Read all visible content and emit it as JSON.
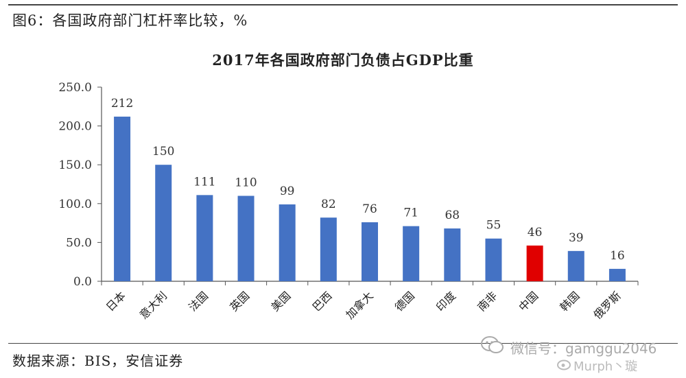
{
  "figure_caption": "图6：各国政府部门杠杆率比较，%",
  "source_note": "数据来源：BIS，安信证券",
  "watermark": {
    "wechat_text": "微信号：gamggu2046",
    "weibo_text": "Murph丶璇"
  },
  "colors": {
    "bar": "#4472c4",
    "highlight_bar": "#e00000",
    "axis": "#555555"
  },
  "chart_data": {
    "type": "bar",
    "title": "2017年各国政府部门负债占GDP比重",
    "xlabel": "",
    "ylabel": "",
    "ylim": [
      0,
      250
    ],
    "yticks": [
      "0.0",
      "50.0",
      "100.0",
      "150.0",
      "200.0",
      "250.0"
    ],
    "grid": false,
    "categories": [
      "日本",
      "意大利",
      "法国",
      "英国",
      "美国",
      "巴西",
      "加拿大",
      "德国",
      "印度",
      "南非",
      "中国",
      "韩国",
      "俄罗斯"
    ],
    "values": [
      212,
      150,
      111,
      110,
      99,
      82,
      76,
      71,
      68,
      55,
      46,
      39,
      16
    ],
    "data_labels": [
      "212",
      "150",
      "111",
      "110",
      "99",
      "82",
      "76",
      "71",
      "68",
      "55",
      "46",
      "39",
      "16"
    ],
    "highlight_category": "中国"
  }
}
